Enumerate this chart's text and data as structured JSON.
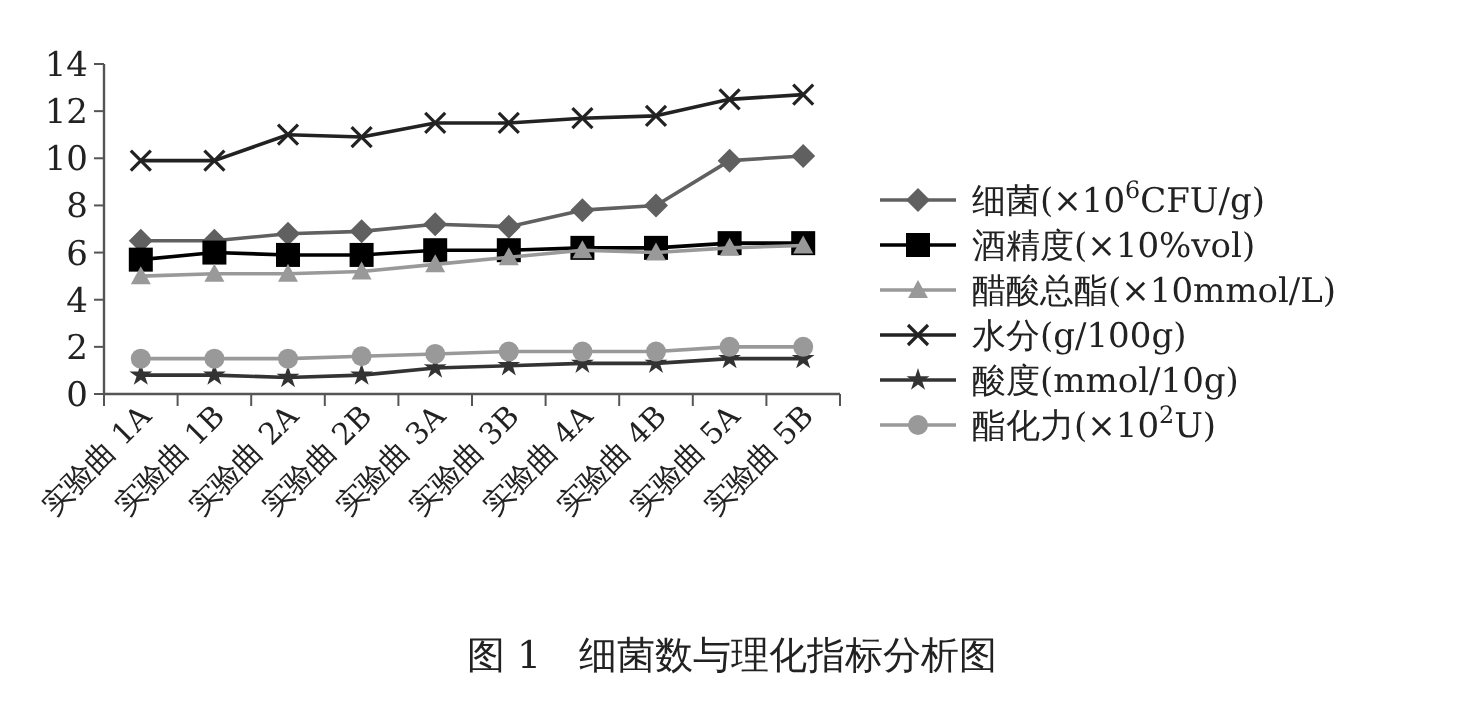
{
  "chart_data": {
    "type": "line",
    "title": "图 1　细菌数与理化指标分析图",
    "categories": [
      "实验曲 1A",
      "实验曲 1B",
      "实验曲 2A",
      "实验曲 2B",
      "实验曲 3A",
      "实验曲 3B",
      "实验曲 4A",
      "实验曲 4B",
      "实验曲 5A",
      "实验曲 5B"
    ],
    "series": [
      {
        "name": "细菌(×10$^{6}$CFU/g)",
        "color": "#606060",
        "marker": "diamond",
        "values": [
          6.5,
          6.5,
          6.8,
          6.9,
          7.2,
          7.1,
          7.8,
          8.0,
          9.9,
          10.1
        ]
      },
      {
        "name": "酒精度(×10%vol)",
        "color": "#000000",
        "marker": "square",
        "values": [
          5.7,
          6.0,
          5.9,
          5.9,
          6.1,
          6.1,
          6.2,
          6.2,
          6.4,
          6.4
        ]
      },
      {
        "name": "醋酸总酯(×10mmol/L)",
        "color": "#999999",
        "marker": "triangle",
        "values": [
          5.0,
          5.1,
          5.1,
          5.2,
          5.5,
          5.8,
          6.1,
          6.0,
          6.2,
          6.3
        ]
      },
      {
        "name": "水分(g/100g)",
        "color": "#222222",
        "marker": "cross",
        "values": [
          9.9,
          9.9,
          11.0,
          10.9,
          11.5,
          11.5,
          11.7,
          11.8,
          12.5,
          12.7
        ]
      },
      {
        "name": "酸度(mmol/10g)",
        "color": "#333333",
        "marker": "star",
        "values": [
          0.8,
          0.8,
          0.7,
          0.8,
          1.1,
          1.2,
          1.3,
          1.3,
          1.5,
          1.5
        ]
      },
      {
        "name": "酯化力(×10$^{2}$U)",
        "color": "#999999",
        "marker": "circle",
        "values": [
          1.5,
          1.5,
          1.5,
          1.6,
          1.7,
          1.8,
          1.8,
          1.8,
          2.0,
          2.0
        ]
      }
    ],
    "ylim": [
      0,
      14
    ],
    "yticks": [
      0,
      2,
      4,
      6,
      8,
      10,
      12,
      14
    ],
    "legend": "right",
    "grid": false
  }
}
